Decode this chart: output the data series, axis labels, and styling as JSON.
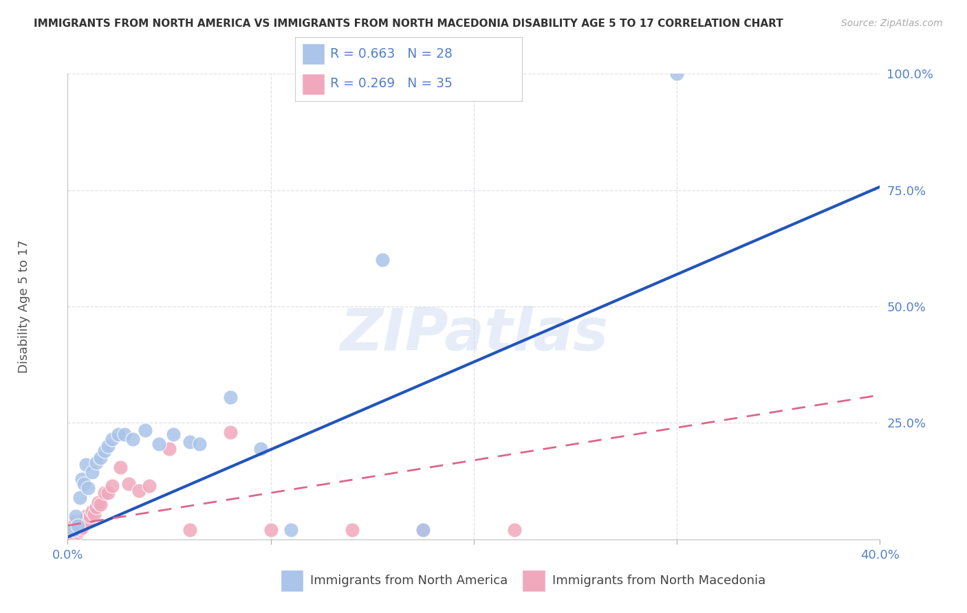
{
  "title": "IMMIGRANTS FROM NORTH AMERICA VS IMMIGRANTS FROM NORTH MACEDONIA DISABILITY AGE 5 TO 17 CORRELATION CHART",
  "source": "Source: ZipAtlas.com",
  "ylabel": "Disability Age 5 to 17",
  "xlim": [
    0.0,
    0.4
  ],
  "ylim": [
    0.0,
    1.0
  ],
  "xticks": [
    0.0,
    0.1,
    0.2,
    0.3,
    0.4
  ],
  "xtick_labels": [
    "0.0%",
    "",
    "",
    "",
    "40.0%"
  ],
  "yticks": [
    0.25,
    0.5,
    0.75,
    1.0
  ],
  "ytick_labels": [
    "25.0%",
    "50.0%",
    "75.0%",
    "100.0%"
  ],
  "blue_R": 0.663,
  "blue_N": 28,
  "pink_R": 0.269,
  "pink_N": 35,
  "blue_color": "#aac4ea",
  "pink_color": "#f0a8bc",
  "blue_line_color": "#2255bb",
  "pink_line_color": "#dd6688",
  "legend_label_blue": "Immigrants from North America",
  "legend_label_pink": "Immigrants from North Macedonia",
  "blue_scatter_x": [
    0.003,
    0.004,
    0.005,
    0.006,
    0.007,
    0.008,
    0.009,
    0.01,
    0.012,
    0.014,
    0.016,
    0.018,
    0.02,
    0.022,
    0.025,
    0.028,
    0.032,
    0.038,
    0.045,
    0.052,
    0.06,
    0.065,
    0.08,
    0.095,
    0.11,
    0.155,
    0.175,
    0.3
  ],
  "blue_scatter_y": [
    0.02,
    0.05,
    0.03,
    0.09,
    0.13,
    0.12,
    0.16,
    0.11,
    0.145,
    0.165,
    0.175,
    0.19,
    0.2,
    0.215,
    0.225,
    0.225,
    0.215,
    0.235,
    0.205,
    0.225,
    0.21,
    0.205,
    0.305,
    0.195,
    0.02,
    0.6,
    0.02,
    1.0
  ],
  "pink_scatter_x": [
    0.001,
    0.002,
    0.003,
    0.003,
    0.004,
    0.004,
    0.005,
    0.005,
    0.006,
    0.006,
    0.007,
    0.007,
    0.008,
    0.009,
    0.01,
    0.011,
    0.012,
    0.013,
    0.014,
    0.015,
    0.016,
    0.018,
    0.02,
    0.022,
    0.026,
    0.03,
    0.035,
    0.04,
    0.05,
    0.06,
    0.08,
    0.1,
    0.14,
    0.175,
    0.22
  ],
  "pink_scatter_y": [
    0.01,
    0.02,
    0.015,
    0.03,
    0.02,
    0.04,
    0.015,
    0.025,
    0.02,
    0.03,
    0.025,
    0.04,
    0.035,
    0.05,
    0.04,
    0.05,
    0.06,
    0.055,
    0.07,
    0.08,
    0.075,
    0.1,
    0.1,
    0.115,
    0.155,
    0.12,
    0.105,
    0.115,
    0.195,
    0.02,
    0.23,
    0.02,
    0.02,
    0.02,
    0.02
  ],
  "watermark": "ZIPatlas",
  "background_color": "#ffffff",
  "grid_color": "#e0e0e8"
}
